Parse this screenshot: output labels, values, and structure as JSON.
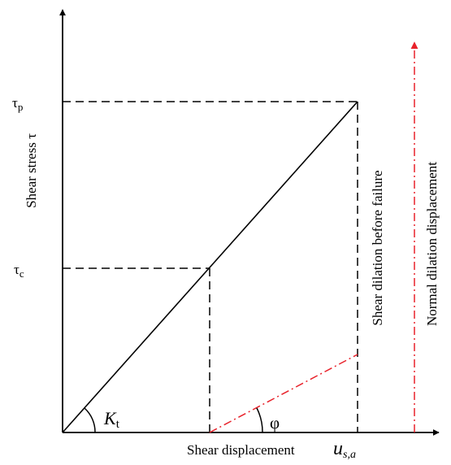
{
  "diagram": {
    "y_axis_label": "Shear stress τ",
    "x_axis_label": "Shear displacement",
    "tau_p_base": "τ",
    "tau_p_sub": "p",
    "tau_c_base": "τ",
    "tau_c_sub": "c",
    "kt_base": "K",
    "kt_sub": "t",
    "phi": "φ",
    "us_base": "u",
    "us_sub": "s,a",
    "shear_dilation_label": "Shear dilation before failure",
    "normal_dilation_label": "Normal dilation displacement",
    "colors": {
      "axes": "#000000",
      "dilation": "#e8222b"
    }
  }
}
